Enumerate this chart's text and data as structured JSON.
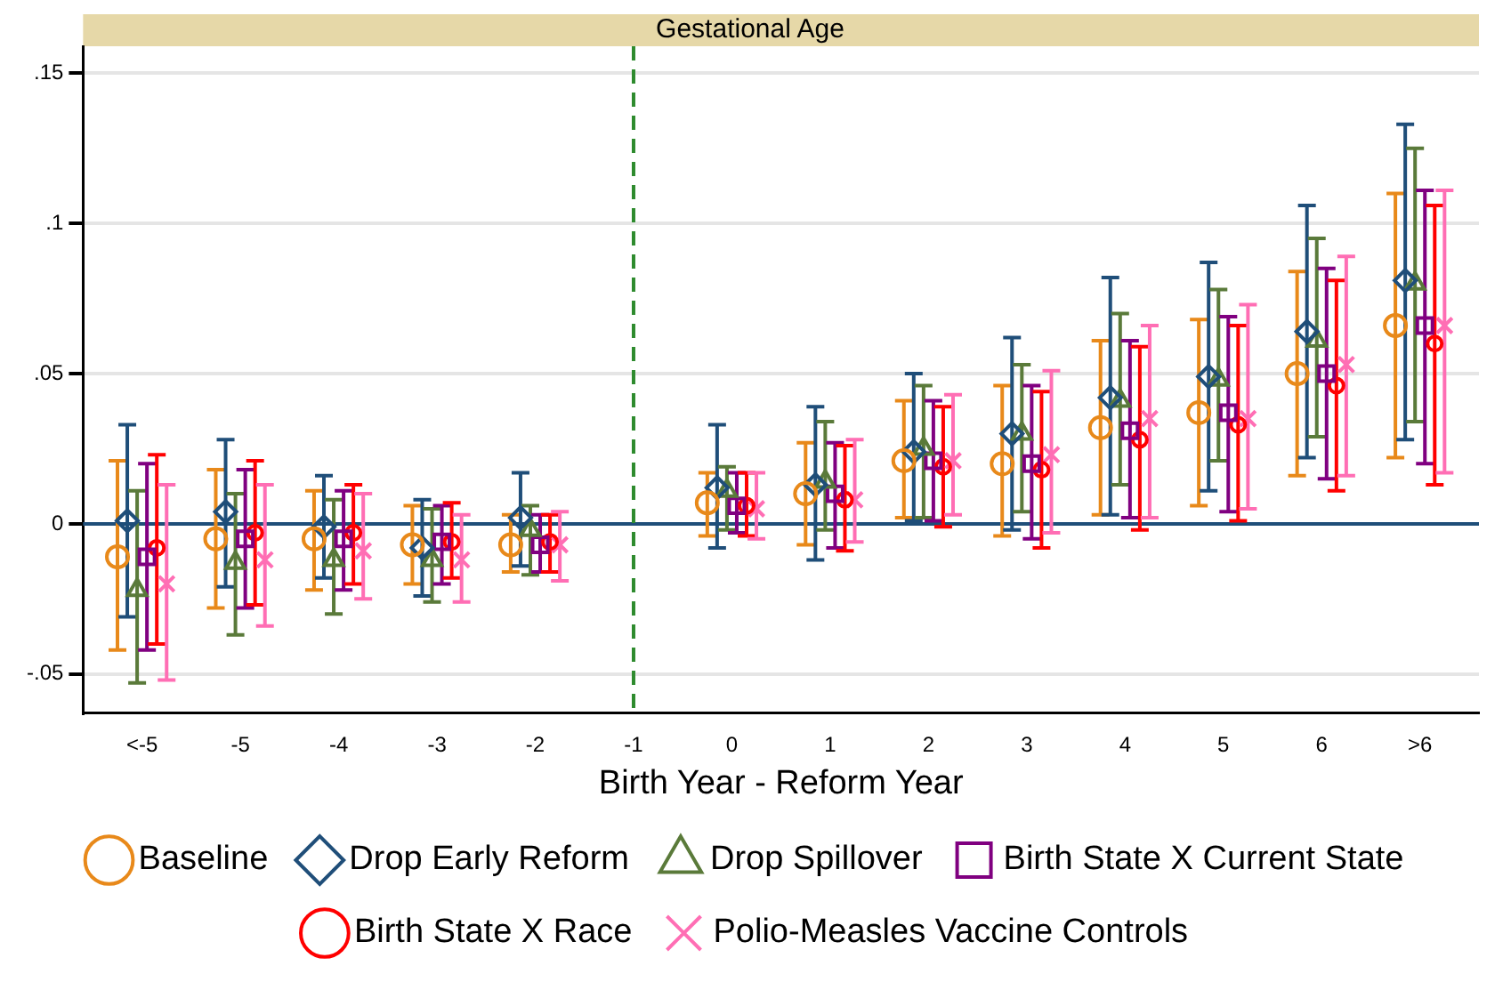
{
  "chart_data": {
    "type": "scatter",
    "title": "Gestational Age",
    "xlabel": "Birth Year - Reform Year",
    "categories": [
      "<-5",
      "-5",
      "-4",
      "-3",
      "-2",
      "-1",
      "0",
      "1",
      "2",
      "3",
      "4",
      "5",
      "6",
      ">6"
    ],
    "ylim": [
      -0.063,
      0.159
    ],
    "yticks": [
      {
        "value": -0.05,
        "label": "-.05"
      },
      0,
      {
        "value": 0.05,
        "label": ".05"
      },
      {
        "value": 0.1,
        "label": ".1"
      },
      {
        "value": 0.15,
        "label": ".15"
      }
    ],
    "grid": "y",
    "legend": "bottom",
    "ref_lines": [
      {
        "axis": "y",
        "value": 0,
        "color": "#1f4e79",
        "line_style": "solid"
      },
      {
        "axis": "x",
        "value": "-1",
        "color": "#2e8b2e",
        "line_style": "dashed"
      }
    ],
    "series": [
      {
        "name": "Baseline",
        "color": "#e8891a",
        "marker": "circle",
        "values": [
          -0.011,
          -0.005,
          -0.005,
          -0.007,
          -0.007,
          null,
          0.007,
          0.01,
          0.021,
          0.02,
          0.032,
          0.037,
          0.05,
          0.066
        ],
        "errors": [
          [
            -0.042,
            0.021
          ],
          [
            -0.028,
            0.018
          ],
          [
            -0.022,
            0.011
          ],
          [
            -0.02,
            0.006
          ],
          [
            -0.016,
            0.003
          ],
          null,
          [
            -0.004,
            0.017
          ],
          [
            -0.007,
            0.027
          ],
          [
            0.002,
            0.041
          ],
          [
            -0.004,
            0.046
          ],
          [
            0.003,
            0.061
          ],
          [
            0.006,
            0.068
          ],
          [
            0.016,
            0.084
          ],
          [
            0.022,
            0.11
          ]
        ]
      },
      {
        "name": "Drop Early Reform",
        "color": "#1f4e79",
        "marker": "diamond",
        "values": [
          0.001,
          0.004,
          -0.001,
          -0.008,
          0.002,
          null,
          0.012,
          0.013,
          0.024,
          0.03,
          0.042,
          0.049,
          0.064,
          0.081
        ],
        "errors": [
          [
            -0.031,
            0.033
          ],
          [
            -0.021,
            0.028
          ],
          [
            -0.018,
            0.016
          ],
          [
            -0.024,
            0.008
          ],
          [
            -0.014,
            0.017
          ],
          null,
          [
            -0.008,
            0.033
          ],
          [
            -0.012,
            0.039
          ],
          [
            0.001,
            0.05
          ],
          [
            -0.002,
            0.062
          ],
          [
            0.003,
            0.082
          ],
          [
            0.011,
            0.087
          ],
          [
            0.022,
            0.106
          ],
          [
            0.028,
            0.133
          ]
        ]
      },
      {
        "name": "Drop Spillover",
        "color": "#5a7a3a",
        "marker": "triangle",
        "values": [
          -0.022,
          -0.013,
          -0.012,
          -0.012,
          -0.002,
          null,
          0.011,
          0.014,
          0.025,
          0.03,
          0.041,
          0.048,
          0.061,
          0.08
        ],
        "errors": [
          [
            -0.053,
            0.011
          ],
          [
            -0.037,
            0.01
          ],
          [
            -0.03,
            0.008
          ],
          [
            -0.026,
            0.005
          ],
          [
            -0.017,
            0.006
          ],
          null,
          [
            -0.002,
            0.019
          ],
          [
            -0.002,
            0.034
          ],
          [
            0.002,
            0.046
          ],
          [
            0.004,
            0.053
          ],
          [
            0.013,
            0.07
          ],
          [
            0.021,
            0.078
          ],
          [
            0.029,
            0.095
          ],
          [
            0.034,
            0.125
          ]
        ]
      },
      {
        "name": "Birth State X Current State",
        "color": "#800080",
        "marker": "square",
        "values": [
          -0.011,
          -0.005,
          -0.005,
          -0.006,
          -0.007,
          null,
          0.006,
          0.01,
          0.021,
          0.02,
          0.031,
          0.037,
          0.05,
          0.066
        ],
        "errors": [
          [
            -0.042,
            0.02
          ],
          [
            -0.028,
            0.018
          ],
          [
            -0.022,
            0.011
          ],
          [
            -0.02,
            0.006
          ],
          [
            -0.016,
            0.003
          ],
          null,
          [
            -0.003,
            0.017
          ],
          [
            -0.008,
            0.027
          ],
          [
            0.001,
            0.041
          ],
          [
            -0.005,
            0.046
          ],
          [
            0.002,
            0.061
          ],
          [
            0.004,
            0.069
          ],
          [
            0.015,
            0.085
          ],
          [
            0.02,
            0.111
          ]
        ]
      },
      {
        "name": "Birth State X Race",
        "color": "#ff0000",
        "marker": "circle",
        "values": [
          -0.008,
          -0.003,
          -0.003,
          -0.006,
          -0.006,
          null,
          0.006,
          0.008,
          0.019,
          0.018,
          0.028,
          0.033,
          0.046,
          0.06
        ],
        "errors": [
          [
            -0.04,
            0.023
          ],
          [
            -0.027,
            0.021
          ],
          [
            -0.02,
            0.013
          ],
          [
            -0.018,
            0.007
          ],
          [
            -0.016,
            0.003
          ],
          null,
          [
            -0.004,
            0.017
          ],
          [
            -0.009,
            0.026
          ],
          [
            -0.001,
            0.039
          ],
          [
            -0.008,
            0.044
          ],
          [
            -0.002,
            0.059
          ],
          [
            0.001,
            0.066
          ],
          [
            0.011,
            0.081
          ],
          [
            0.013,
            0.106
          ]
        ]
      },
      {
        "name": "Polio-Measles Vaccine Controls",
        "color": "#ff6eb4",
        "marker": "cross",
        "values": [
          -0.02,
          -0.012,
          -0.009,
          -0.012,
          -0.007,
          null,
          0.005,
          0.008,
          0.021,
          0.023,
          0.035,
          0.035,
          0.053,
          0.066
        ],
        "errors": [
          [
            -0.052,
            0.013
          ],
          [
            -0.034,
            0.013
          ],
          [
            -0.025,
            0.01
          ],
          [
            -0.026,
            0.003
          ],
          [
            -0.019,
            0.004
          ],
          null,
          [
            -0.005,
            0.017
          ],
          [
            -0.006,
            0.028
          ],
          [
            0.003,
            0.043
          ],
          [
            -0.003,
            0.051
          ],
          [
            0.002,
            0.066
          ],
          [
            0.005,
            0.073
          ],
          [
            0.016,
            0.089
          ],
          [
            0.017,
            0.111
          ]
        ]
      }
    ]
  }
}
